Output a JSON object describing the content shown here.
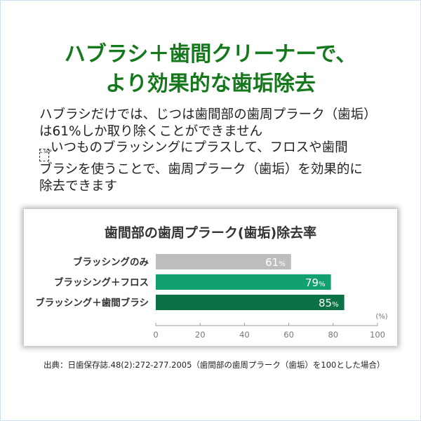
{
  "headline": {
    "line1": "ハブラシ＋歯間クリーナーで、",
    "line2": "より効果的な歯垢除去"
  },
  "body": {
    "lines": [
      "ハブラシだけでは、じつは歯間部の歯周プラーク（歯垢）",
      "は61%しか取り除くことができません",
      "いつものブラッシングにプラスして、フロスや歯間",
      "ブラシを使うことで、歯周プラーク（歯垢）を効果的に",
      "除去できます"
    ],
    "sep_glyph": "L SEP"
  },
  "chart_data": {
    "type": "bar",
    "orientation": "horizontal",
    "title": "歯間部の歯周プラーク(歯垢)除去率",
    "categories": [
      "ブラッシングのみ",
      "ブラッシング＋フロス",
      "ブラッシング＋歯間ブラシ"
    ],
    "values": [
      61,
      79,
      85
    ],
    "data_labels": [
      "61",
      "79",
      "85"
    ],
    "data_label_unit": "%",
    "colors": [
      "#bdbdbd",
      "#13a070",
      "#0b7246"
    ],
    "xlim": [
      0,
      100
    ],
    "xticks": [
      "0",
      "20",
      "40",
      "60",
      "80",
      "100"
    ],
    "xlabel": "(%)",
    "grid": false
  },
  "source": "出典：日歯保存誌.48(2):272-277.2005（歯間部の歯周プラーク（歯垢）を100とした場合）"
}
